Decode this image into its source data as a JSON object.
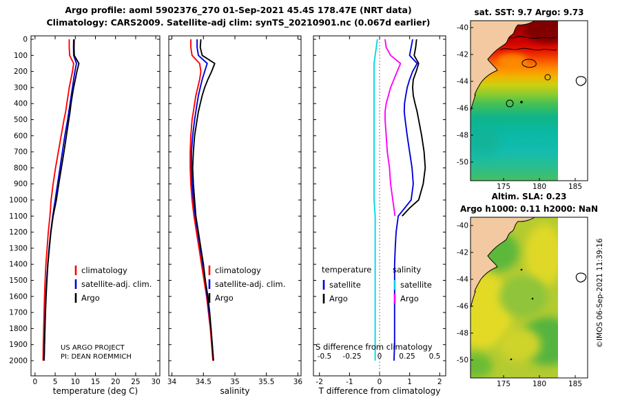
{
  "header": {
    "line1": "Argo profile: aoml 5902376_270 01-Sep-2021 45.4S 178.47E (NRT data)",
    "line2": "Climatology: CARS2009. Satellite-adj clim: synTS_20210901.nc (0.067d earlier)"
  },
  "watermark": "©IMOS 06-Sep-2021 11:39:16",
  "depth_ticks": [
    0,
    100,
    200,
    300,
    400,
    500,
    600,
    700,
    800,
    900,
    1000,
    1100,
    1200,
    1300,
    1400,
    1500,
    1600,
    1700,
    1800,
    1900,
    2000
  ],
  "colors": {
    "climatology": "#ff0000",
    "satellite_adj": "#0000dd",
    "argo": "#000000",
    "satellite_S": "#00d8e8",
    "argo_S": "#ff00ff",
    "land": "#f2c9a0"
  },
  "panels": {
    "temperature": {
      "xlabel": "temperature (deg C)",
      "note1": "US ARGO PROJECT",
      "note2": "PI: DEAN ROEMMICH",
      "legend": [
        "climatology",
        "satellite-adj. clim.",
        "Argo"
      ]
    },
    "salinity": {
      "xlabel": "salinity",
      "legend": [
        "climatology",
        "satellite-adj. clim.",
        "Argo"
      ]
    },
    "difference": {
      "xlabel": "T difference from climatology",
      "x2label": "S difference from climatology",
      "x2ticks": [
        -0.5,
        -0.25,
        0,
        0.25,
        0.5
      ],
      "legend_groups": [
        {
          "header": "temperature",
          "entries": [
            {
              "label": "satellite",
              "color": "#0000dd"
            },
            {
              "label": "Argo",
              "color": "#000000"
            }
          ]
        },
        {
          "header": "salinity",
          "entries": [
            {
              "label": "satellite",
              "color": "#00d8e8"
            },
            {
              "label": "Argo",
              "color": "#ff00ff"
            }
          ]
        }
      ]
    }
  },
  "chart_data": [
    {
      "id": "temperature-profile",
      "type": "line",
      "xlabel": "temperature (deg C)",
      "ylabel": "depth (m)",
      "xlim": [
        -1,
        31
      ],
      "ylim": [
        0,
        2050
      ],
      "xticks": [
        0,
        5,
        10,
        15,
        20,
        25,
        30
      ],
      "depths": [
        0,
        50,
        100,
        150,
        200,
        250,
        300,
        350,
        400,
        450,
        500,
        600,
        700,
        800,
        900,
        1000,
        1100,
        1200,
        1300,
        1400,
        1500,
        1600,
        1700,
        1800,
        1900,
        2000
      ],
      "series": [
        {
          "name": "climatology",
          "color": "#ff0000",
          "values": [
            8.5,
            8.5,
            8.6,
            9.6,
            9.3,
            8.9,
            8.5,
            8.2,
            7.9,
            7.6,
            7.2,
            6.5,
            5.8,
            5.1,
            4.5,
            4.0,
            3.7,
            3.3,
            3.0,
            2.7,
            2.5,
            2.35,
            2.25,
            2.15,
            2.05,
            2.0
          ]
        },
        {
          "name": "satellite-adj. clim.",
          "color": "#0000dd",
          "values": [
            9.6,
            9.55,
            9.6,
            10.3,
            9.9,
            9.6,
            9.3,
            9.0,
            8.7,
            8.4,
            8.1,
            7.4,
            6.8,
            6.2,
            5.6,
            5.0,
            4.4,
            3.9,
            3.5,
            3.15,
            2.9,
            2.7,
            2.55,
            2.45,
            2.35,
            2.25
          ]
        },
        {
          "name": "Argo",
          "color": "#000000",
          "values": [
            9.73,
            9.7,
            9.75,
            10.9,
            10.4,
            10.0,
            9.6,
            9.25,
            8.95,
            8.7,
            8.4,
            7.8,
            7.2,
            6.55,
            5.9,
            5.3,
            4.5,
            3.95,
            3.55,
            3.2,
            2.95,
            2.75,
            2.6,
            2.45,
            2.35,
            2.25
          ]
        }
      ]
    },
    {
      "id": "salinity-profile",
      "type": "line",
      "xlabel": "salinity",
      "ylabel": "depth (m)",
      "xlim": [
        33.95,
        36.05
      ],
      "ylim": [
        0,
        2050
      ],
      "xticks": [
        34,
        34.5,
        35,
        35.5,
        36
      ],
      "depths": [
        0,
        50,
        100,
        150,
        200,
        250,
        300,
        350,
        400,
        450,
        500,
        600,
        700,
        800,
        900,
        1000,
        1100,
        1200,
        1300,
        1400,
        1500,
        1600,
        1700,
        1800,
        1900,
        2000
      ],
      "series": [
        {
          "name": "climatology",
          "color": "#ff0000",
          "values": [
            34.3,
            34.3,
            34.32,
            34.44,
            34.46,
            34.44,
            34.41,
            34.38,
            34.36,
            34.34,
            34.32,
            34.3,
            34.29,
            34.29,
            34.3,
            34.32,
            34.35,
            34.39,
            34.43,
            34.47,
            34.51,
            34.55,
            34.58,
            34.61,
            34.63,
            34.65
          ]
        },
        {
          "name": "satellite-adj. clim.",
          "color": "#0000dd",
          "values": [
            34.4,
            34.4,
            34.42,
            34.56,
            34.52,
            34.48,
            34.45,
            34.42,
            34.4,
            34.38,
            34.36,
            34.33,
            34.31,
            34.31,
            34.32,
            34.34,
            34.37,
            34.41,
            34.45,
            34.49,
            34.53,
            34.56,
            34.59,
            34.62,
            34.64,
            34.66
          ]
        },
        {
          "name": "Argo",
          "color": "#000000",
          "values": [
            34.46,
            34.45,
            34.48,
            34.68,
            34.63,
            34.57,
            34.52,
            34.48,
            34.45,
            34.42,
            34.4,
            34.36,
            34.34,
            34.33,
            34.34,
            34.36,
            34.38,
            34.42,
            34.46,
            34.5,
            34.53,
            34.57,
            34.6,
            34.62,
            34.64,
            34.66
          ]
        }
      ]
    },
    {
      "id": "difference-profile",
      "type": "line",
      "xlabel": "T difference from climatology",
      "x2label": "S difference from climatology",
      "xlim_T": [
        -2.2,
        2.2
      ],
      "xlim_S": [
        -0.6,
        0.6
      ],
      "ylim": [
        0,
        2050
      ],
      "xticks": [
        -2,
        -1,
        0,
        1,
        2
      ],
      "series": [
        {
          "name": "satellite",
          "group": "temperature",
          "axis": "T",
          "color": "#0000dd",
          "depths": [
            0,
            50,
            100,
            150,
            200,
            250,
            300,
            350,
            400,
            450,
            500,
            600,
            700,
            800,
            900,
            1000,
            1100,
            1200,
            1300,
            1400,
            1500,
            1600,
            1700,
            1800,
            1900,
            2000
          ],
          "values": [
            1.1,
            1.05,
            1.0,
            1.25,
            1.1,
            1.0,
            0.92,
            0.87,
            0.83,
            0.82,
            0.85,
            0.92,
            1.0,
            1.08,
            1.12,
            1.05,
            0.62,
            0.55,
            0.52,
            0.5,
            0.5,
            0.5,
            0.5,
            0.5,
            0.5,
            0.48
          ]
        },
        {
          "name": "Argo",
          "group": "temperature",
          "axis": "T",
          "color": "#000000",
          "depths": [
            0,
            50,
            100,
            150,
            200,
            250,
            300,
            350,
            400,
            450,
            500,
            600,
            700,
            800,
            900,
            1000,
            1050,
            1100
          ],
          "values": [
            1.23,
            1.2,
            1.15,
            1.3,
            1.22,
            1.12,
            1.1,
            1.12,
            1.18,
            1.25,
            1.3,
            1.4,
            1.48,
            1.52,
            1.45,
            1.3,
            1.0,
            0.75
          ]
        },
        {
          "name": "satellite",
          "group": "salinity",
          "axis": "S",
          "color": "#00d8e8",
          "depths": [
            0,
            50,
            100,
            150,
            200,
            250,
            300,
            350,
            400,
            450,
            500,
            600,
            700,
            800,
            900,
            1000,
            1100,
            1200,
            1300,
            1400,
            1500,
            1600,
            1700,
            1800,
            1900,
            2000
          ],
          "values": [
            -0.02,
            -0.03,
            -0.04,
            -0.05,
            -0.05,
            -0.05,
            -0.05,
            -0.05,
            -0.05,
            -0.05,
            -0.05,
            -0.05,
            -0.05,
            -0.05,
            -0.05,
            -0.05,
            -0.04,
            -0.04,
            -0.04,
            -0.04,
            -0.04,
            -0.04,
            -0.04,
            -0.04,
            -0.04,
            -0.04
          ]
        },
        {
          "name": "Argo",
          "group": "salinity",
          "axis": "S",
          "color": "#ff00ff",
          "depths": [
            0,
            50,
            100,
            150,
            200,
            250,
            300,
            350,
            400,
            450,
            500,
            600,
            700,
            800,
            900,
            1000,
            1050,
            1100
          ],
          "values": [
            0.05,
            0.06,
            0.1,
            0.19,
            0.16,
            0.13,
            0.1,
            0.08,
            0.06,
            0.05,
            0.05,
            0.06,
            0.07,
            0.09,
            0.1,
            0.12,
            0.13,
            0.14
          ]
        }
      ]
    }
  ],
  "maps": {
    "sst": {
      "title": "sat. SST: 9.7 Argo: 9.73",
      "xticks": [
        175,
        180,
        185
      ],
      "yticks": [
        -40,
        -42,
        -44,
        -46,
        -48,
        -50
      ]
    },
    "sla": {
      "title1": "Altim. SLA: 0.23",
      "title2": "Argo h1000: 0.11 h2000: NaN",
      "xticks": [
        175,
        180,
        185
      ],
      "yticks": [
        -40,
        -42,
        -44,
        -46,
        -48,
        -50
      ]
    }
  }
}
